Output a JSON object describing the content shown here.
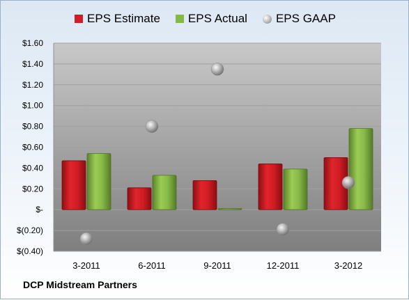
{
  "footer_title": "DCP Midstream Partners",
  "colors": {
    "estimate": "#d01c24",
    "actual": "#86b846",
    "gaap": "#a8a8a8"
  },
  "chart_data": {
    "type": "bar",
    "categories": [
      "3-2011",
      "6-2011",
      "9-2011",
      "12-2011",
      "3-2012"
    ],
    "series": [
      {
        "name": "EPS Estimate",
        "kind": "bar",
        "values": [
          0.47,
          0.21,
          0.28,
          0.44,
          0.5
        ]
      },
      {
        "name": "EPS Actual",
        "kind": "bar",
        "values": [
          0.54,
          0.33,
          0.01,
          0.39,
          0.78
        ]
      },
      {
        "name": "EPS GAAP",
        "kind": "scatter",
        "values": [
          -0.28,
          0.8,
          1.35,
          -0.19,
          0.26
        ]
      }
    ],
    "ylim": [
      -0.4,
      1.6
    ],
    "ytick_values": [
      1.6,
      1.4,
      1.2,
      1.0,
      0.8,
      0.6,
      0.4,
      0.2,
      0.0,
      -0.2,
      -0.4
    ],
    "ytick_labels": [
      "$1.60",
      "$1.40",
      "$1.20",
      "$1.00",
      "$0.80",
      "$0.60",
      "$0.40",
      "$0.20",
      "$-",
      "$(0.20)",
      "$(0.40)"
    ],
    "grid": true,
    "legend_position": "top"
  }
}
